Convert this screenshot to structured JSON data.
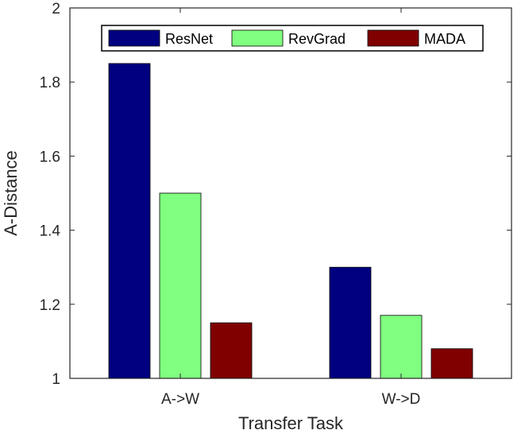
{
  "chart_data": {
    "type": "bar",
    "title": "",
    "xlabel": "Transfer Task",
    "ylabel": "A-Distance",
    "categories": [
      "A->W",
      "W->D"
    ],
    "ylim": [
      1,
      2
    ],
    "yticks": [
      "1",
      "1.2",
      "1.4",
      "1.6",
      "1.8",
      "2"
    ],
    "grid": false,
    "legend_position": "top",
    "series": [
      {
        "name": "ResNet",
        "color": "#000080",
        "values": [
          1.85,
          1.3
        ]
      },
      {
        "name": "RevGrad",
        "color": "#80FF80",
        "values": [
          1.5,
          1.17
        ]
      },
      {
        "name": "MADA",
        "color": "#800000",
        "values": [
          1.15,
          1.08
        ]
      }
    ]
  }
}
